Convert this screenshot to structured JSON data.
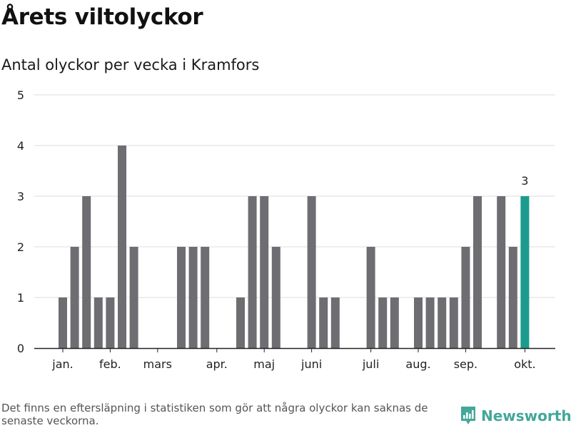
{
  "title": "Årets viltolyckor",
  "subtitle": "Antal olyckor per vecka i Kramfors",
  "footnote": "Det finns en eftersläpning i statistiken som gör att några olyckor kan saknas de senaste veckorna.",
  "brand": {
    "name": "Newsworthy",
    "icon": "newsworthy-chart-logo-icon",
    "color": "#43a79a"
  },
  "chart_data": {
    "type": "bar",
    "title": "Antal olyckor per vecka i Kramfors",
    "xlabel": "",
    "ylabel": "",
    "ylim": [
      0,
      5
    ],
    "yticks": [
      0,
      1,
      2,
      3,
      4,
      5
    ],
    "grid": true,
    "x_tick_labels": [
      "jan.",
      "feb.",
      "mars",
      "apr.",
      "maj",
      "juni",
      "juli",
      "aug.",
      "sep.",
      "okt."
    ],
    "x_tick_weeks": [
      1,
      5,
      9,
      14,
      18,
      22,
      27,
      31,
      35,
      40
    ],
    "weeks": [
      1,
      2,
      3,
      4,
      5,
      6,
      7,
      8,
      9,
      10,
      11,
      12,
      13,
      14,
      15,
      16,
      17,
      18,
      19,
      20,
      21,
      22,
      23,
      24,
      25,
      26,
      27,
      28,
      29,
      30,
      31,
      32,
      33,
      34,
      35,
      36,
      37,
      38,
      39,
      40
    ],
    "values": [
      1,
      2,
      3,
      1,
      1,
      4,
      2,
      0,
      0,
      0,
      2,
      2,
      2,
      0,
      0,
      1,
      3,
      3,
      2,
      0,
      0,
      3,
      1,
      1,
      0,
      0,
      2,
      1,
      1,
      0,
      1,
      1,
      1,
      1,
      2,
      3,
      0,
      3,
      2,
      3
    ],
    "highlight_index": 39,
    "highlight_label": "3",
    "colors": {
      "bar": "#6e6d72",
      "highlight": "#1a9b8d",
      "grid": "#dddddd",
      "axis": "#222222"
    }
  }
}
